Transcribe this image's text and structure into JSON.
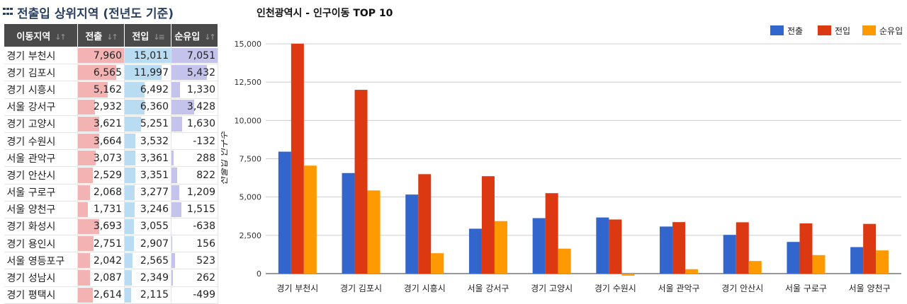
{
  "table": {
    "title": "전출입 상위지역 (전년도 기준)",
    "headers": [
      "이동지역",
      "전출",
      "전입",
      "순유입"
    ],
    "rows": [
      {
        "region": "경기 부천시",
        "out": "7,960",
        "in": "15,011",
        "net": "7,051"
      },
      {
        "region": "경기 김포시",
        "out": "6,565",
        "in": "11,997",
        "net": "5,432"
      },
      {
        "region": "경기 시흥시",
        "out": "5,162",
        "in": "6,492",
        "net": "1,330"
      },
      {
        "region": "서울 강서구",
        "out": "2,932",
        "in": "6,360",
        "net": "3,428"
      },
      {
        "region": "경기 고양시",
        "out": "3,621",
        "in": "5,251",
        "net": "1,630"
      },
      {
        "region": "경기 수원시",
        "out": "3,664",
        "in": "3,532",
        "net": "-132"
      },
      {
        "region": "서울 관악구",
        "out": "3,073",
        "in": "3,361",
        "net": "288"
      },
      {
        "region": "경기 안산시",
        "out": "2,529",
        "in": "3,351",
        "net": "822"
      },
      {
        "region": "서울 구로구",
        "out": "2,068",
        "in": "3,277",
        "net": "1,209"
      },
      {
        "region": "서울 양천구",
        "out": "1,731",
        "in": "3,246",
        "net": "1,515"
      },
      {
        "region": "경기 화성시",
        "out": "3,693",
        "in": "3,055",
        "net": "-638"
      },
      {
        "region": "경기 용인시",
        "out": "2,751",
        "in": "2,907",
        "net": "156"
      },
      {
        "region": "서울 영등포구",
        "out": "2,042",
        "in": "2,565",
        "net": "523"
      },
      {
        "region": "경기 성남시",
        "out": "2,087",
        "in": "2,349",
        "net": "262"
      },
      {
        "region": "경기 평택시",
        "out": "2,614",
        "in": "2,115",
        "net": "-499"
      }
    ],
    "bar_colors": {
      "out": "#f4b3b3",
      "in": "#b9dcf2",
      "net": "#c3c3ec"
    }
  },
  "chart_data": {
    "type": "bar",
    "title": "인천광역시 - 인구이동 TOP 10",
    "ylabel": "전출입 인구수",
    "xlabel": "",
    "categories": [
      "경기 부천시",
      "경기 김포시",
      "경기 시흥시",
      "서울 강서구",
      "경기 고양시",
      "경기 수원시",
      "서울 관악구",
      "경기 안산시",
      "서울 구로구",
      "서울 양천구"
    ],
    "series": [
      {
        "name": "전출",
        "color": "#3366cc",
        "values": [
          7960,
          6565,
          5162,
          2932,
          3621,
          3664,
          3073,
          2529,
          2068,
          1731
        ]
      },
      {
        "name": "전입",
        "color": "#dc3912",
        "values": [
          15011,
          11997,
          6492,
          6360,
          5251,
          3532,
          3361,
          3351,
          3277,
          3246
        ]
      },
      {
        "name": "순유입",
        "color": "#ff9900",
        "values": [
          7051,
          5432,
          1330,
          3428,
          1630,
          -132,
          288,
          822,
          1209,
          1515
        ]
      }
    ],
    "ylim": [
      0,
      15000
    ],
    "yticks": [
      "0",
      "2,500",
      "5,000",
      "7,500",
      "10,000",
      "12,500",
      "15,000"
    ],
    "grid": true,
    "legend": "top-right"
  }
}
